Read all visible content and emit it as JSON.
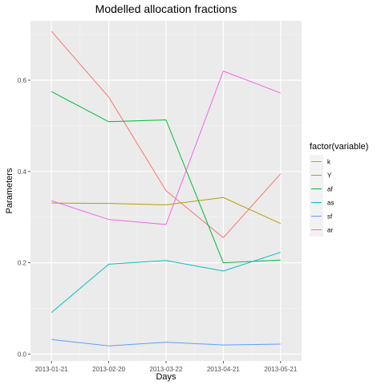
{
  "chart_data": {
    "type": "line",
    "title": "Modelled allocation fractions",
    "xlabel": "Days",
    "ylabel": "Parameters",
    "x": [
      "2013-01-21",
      "2013-02-20",
      "2013-03-22",
      "2013-04-21",
      "2013-05-21"
    ],
    "xlim": [
      "2013-01-10",
      "2013-06-01"
    ],
    "ylim": [
      -0.015,
      0.73
    ],
    "yticks": [
      0.0,
      0.2,
      0.4,
      0.6
    ],
    "ytick_labels": [
      "0.0",
      "0.2",
      "0.4",
      "0.6"
    ],
    "grid": true,
    "legend": {
      "title": "factor(variable)",
      "position": "right"
    },
    "series": [
      {
        "name": "k",
        "color": "#F8766D",
        "values": [
          0.707,
          0.563,
          0.358,
          0.255,
          0.395
        ]
      },
      {
        "name": "Y",
        "color": "#B79F00",
        "values": [
          0.331,
          0.33,
          0.327,
          0.343,
          0.286
        ]
      },
      {
        "name": "af",
        "color": "#00BA38",
        "values": [
          0.575,
          0.509,
          0.513,
          0.2,
          0.206
        ]
      },
      {
        "name": "as",
        "color": "#00BFC4",
        "values": [
          0.091,
          0.197,
          0.205,
          0.182,
          0.223
        ]
      },
      {
        "name": "sf",
        "color": "#619CFF",
        "values": [
          0.032,
          0.018,
          0.026,
          0.02,
          0.022
        ]
      },
      {
        "name": "ar",
        "color": "#F564E3",
        "values": [
          0.336,
          0.295,
          0.284,
          0.62,
          0.572
        ]
      }
    ]
  }
}
